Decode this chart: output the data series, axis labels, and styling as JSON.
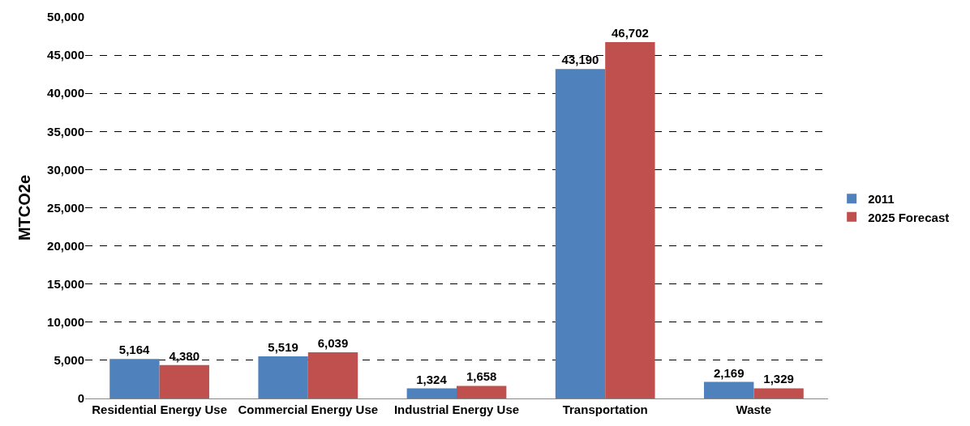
{
  "chart_data": {
    "type": "bar",
    "ylabel": "MTCO2e",
    "categories": [
      "Residential Energy Use",
      "Commercial Energy Use",
      "Industrial Energy Use",
      "Transportation",
      "Waste"
    ],
    "series": [
      {
        "name": "2011",
        "color": "#4f81bd",
        "values": [
          5164,
          5519,
          1324,
          43190,
          2169
        ],
        "value_labels": [
          "5,164",
          "5,519",
          "1,324",
          "43,190",
          "2,169"
        ]
      },
      {
        "name": "2025 Forecast",
        "color": "#c0504d",
        "values": [
          4380,
          6039,
          1658,
          46702,
          1329
        ],
        "value_labels": [
          "4,380",
          "6,039",
          "1,658",
          "46,702",
          "1,329"
        ]
      }
    ],
    "ylim": [
      0,
      50000
    ],
    "yticks": [
      0,
      {
        "value": 5000,
        "label": "5,000"
      },
      {
        "value": 10000,
        "label": "10,000"
      },
      {
        "value": 15000,
        "label": "15,000"
      },
      {
        "value": 20000,
        "label": "20,000"
      },
      {
        "value": 25000,
        "label": "25,000"
      },
      {
        "value": 30000,
        "label": "30,000"
      },
      {
        "value": 35000,
        "label": "35,000"
      },
      {
        "value": 40000,
        "label": "40,000"
      },
      {
        "value": 45000,
        "label": "45,000"
      },
      {
        "value": 50000,
        "label": "50,000"
      }
    ],
    "grid": "y",
    "legend": "right"
  }
}
